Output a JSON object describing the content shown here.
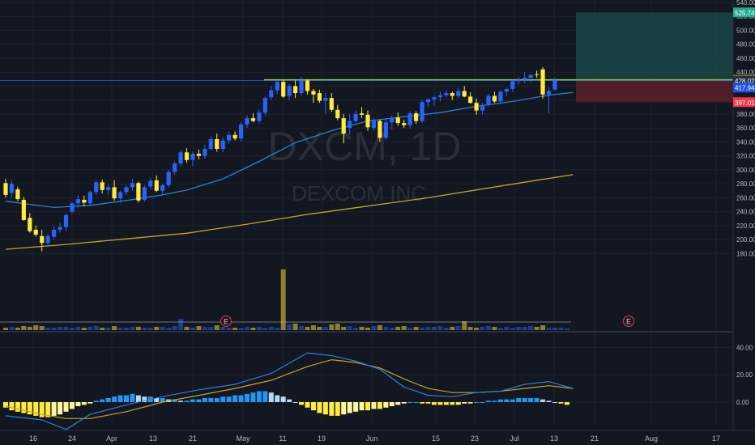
{
  "chart_data": [
    {
      "type": "candlestick",
      "watermark": {
        "symbol": "DXCM, 1D",
        "name": "DEXCOM INC"
      },
      "x_tick_labels": [
        "16",
        "24",
        "Apr",
        "13",
        "21",
        "May",
        "11",
        "19",
        "Jun",
        "15",
        "23",
        "Jul",
        "13",
        "21",
        "Aug",
        "17"
      ],
      "y_axis": {
        "range": [
          165,
          540
        ],
        "tick_labels": [
          "540.00",
          "520.00",
          "500.00",
          "480.00",
          "460.00",
          "440.00",
          "420.00",
          "400.00",
          "380.00",
          "360.00",
          "340.00",
          "320.00",
          "300.00",
          "280.00",
          "260.00",
          "240.00",
          "220.00",
          "200.00",
          "180.00"
        ]
      },
      "price_labels": [
        {
          "text": "525.74",
          "value": 525.74,
          "color": "#22ab94"
        },
        {
          "text": "429.00",
          "value": 429.0,
          "color": "#8bc34a"
        },
        {
          "text": "428.02",
          "value": 428.02,
          "color": "#2a2e39"
        },
        {
          "text": "417.94",
          "value": 417.94,
          "color": "#1e53e5"
        },
        {
          "text": "397.01",
          "value": 397.01,
          "color": "#f23645"
        }
      ],
      "resistance_level": 429.0,
      "long_position": {
        "entry": 428.02,
        "target": 525.74,
        "stop": 397.01
      },
      "earnings_markers": [
        "E",
        "E"
      ],
      "up_color": "#2962ff",
      "down_color": "#ffeb3b",
      "ohlc": [
        [
          281,
          287,
          260,
          264
        ],
        [
          267,
          284,
          260,
          280
        ],
        [
          272,
          276,
          255,
          258
        ],
        [
          257,
          261,
          227,
          228
        ],
        [
          231,
          238,
          210,
          212
        ],
        [
          214,
          220,
          204,
          207
        ],
        [
          205,
          214,
          183,
          195
        ],
        [
          195,
          208,
          190,
          205
        ],
        [
          204,
          219,
          200,
          214
        ],
        [
          214,
          224,
          210,
          218
        ],
        [
          218,
          238,
          213,
          235
        ],
        [
          240,
          254,
          237,
          252
        ],
        [
          252,
          264,
          246,
          258
        ],
        [
          257,
          263,
          248,
          253
        ],
        [
          252,
          270,
          250,
          268
        ],
        [
          268,
          285,
          264,
          282
        ],
        [
          282,
          286,
          266,
          271
        ],
        [
          271,
          279,
          264,
          275
        ],
        [
          275,
          285,
          256,
          259
        ],
        [
          259,
          270,
          253,
          268
        ],
        [
          268,
          278,
          264,
          275
        ],
        [
          275,
          287,
          270,
          281
        ],
        [
          281,
          283,
          253,
          256
        ],
        [
          257,
          278,
          254,
          275
        ],
        [
          276,
          288,
          272,
          284
        ],
        [
          285,
          292,
          268,
          270
        ],
        [
          270,
          280,
          265,
          278
        ],
        [
          278,
          300,
          275,
          297
        ],
        [
          297,
          312,
          293,
          309
        ],
        [
          309,
          328,
          305,
          325
        ],
        [
          325,
          331,
          310,
          314
        ],
        [
          314,
          326,
          306,
          323
        ],
        [
          323,
          329,
          315,
          320
        ],
        [
          320,
          336,
          316,
          330
        ],
        [
          330,
          348,
          328,
          344
        ],
        [
          344,
          352,
          326,
          330
        ],
        [
          330,
          346,
          325,
          342
        ],
        [
          342,
          355,
          338,
          350
        ],
        [
          350,
          355,
          342,
          345
        ],
        [
          345,
          368,
          340,
          365
        ],
        [
          365,
          378,
          360,
          374
        ],
        [
          374,
          381,
          368,
          370
        ],
        [
          370,
          387,
          366,
          382
        ],
        [
          382,
          405,
          378,
          403
        ],
        [
          404,
          420,
          400,
          414
        ],
        [
          414,
          428,
          408,
          426
        ],
        [
          426,
          429,
          403,
          405
        ],
        [
          406,
          423,
          400,
          420
        ],
        [
          420,
          428,
          403,
          410
        ],
        [
          410,
          433,
          406,
          428
        ],
        [
          428,
          430,
          408,
          413
        ],
        [
          413,
          416,
          396,
          408
        ],
        [
          410,
          415,
          396,
          399
        ],
        [
          399,
          410,
          380,
          403
        ],
        [
          403,
          410,
          383,
          386
        ],
        [
          386,
          393,
          371,
          374
        ],
        [
          374,
          380,
          338,
          352
        ],
        [
          360,
          380,
          350,
          370
        ],
        [
          370,
          385,
          367,
          380
        ],
        [
          381,
          390,
          374,
          379
        ],
        [
          379,
          385,
          356,
          361
        ],
        [
          360,
          374,
          356,
          370
        ],
        [
          370,
          372,
          340,
          346
        ],
        [
          346,
          374,
          343,
          368
        ],
        [
          368,
          378,
          358,
          375
        ],
        [
          375,
          382,
          363,
          367
        ],
        [
          367,
          372,
          360,
          364
        ],
        [
          364,
          384,
          359,
          381
        ],
        [
          381,
          384,
          366,
          370
        ],
        [
          370,
          400,
          367,
          397
        ],
        [
          397,
          403,
          390,
          401
        ],
        [
          401,
          407,
          392,
          404
        ],
        [
          404,
          412,
          398,
          407
        ],
        [
          407,
          414,
          404,
          410
        ],
        [
          410,
          412,
          400,
          406
        ],
        [
          406,
          418,
          402,
          413
        ],
        [
          413,
          420,
          404,
          405
        ],
        [
          405,
          411,
          395,
          396
        ],
        [
          396,
          402,
          379,
          385
        ],
        [
          385,
          396,
          379,
          393
        ],
        [
          393,
          409,
          391,
          406
        ],
        [
          406,
          412,
          396,
          398
        ],
        [
          398,
          414,
          396,
          412
        ],
        [
          412,
          418,
          406,
          416
        ],
        [
          416,
          429,
          412,
          427
        ],
        [
          427,
          433,
          422,
          429
        ],
        [
          429,
          440,
          424,
          432
        ],
        [
          432,
          437,
          425,
          436
        ],
        [
          437,
          442,
          432,
          436
        ],
        [
          444,
          447,
          402,
          408
        ],
        [
          408,
          418,
          381,
          413
        ],
        [
          415,
          432,
          414,
          428
        ]
      ],
      "ma_short": [
        [
          0,
          255
        ],
        [
          8,
          246
        ],
        [
          14,
          249
        ],
        [
          20,
          256
        ],
        [
          26,
          264
        ],
        [
          30,
          271
        ],
        [
          36,
          287
        ],
        [
          42,
          312
        ],
        [
          48,
          339
        ],
        [
          54,
          356
        ],
        [
          60,
          370
        ],
        [
          66,
          376
        ],
        [
          72,
          382
        ],
        [
          78,
          391
        ],
        [
          84,
          398
        ],
        [
          90,
          407
        ],
        [
          94,
          411
        ]
      ],
      "ma_long": [
        [
          0,
          186
        ],
        [
          10,
          193
        ],
        [
          20,
          201
        ],
        [
          30,
          209
        ],
        [
          40,
          222
        ],
        [
          50,
          236
        ],
        [
          60,
          248
        ],
        [
          70,
          260
        ],
        [
          80,
          274
        ],
        [
          88,
          285
        ],
        [
          94,
          293
        ]
      ],
      "volume": [
        3,
        4,
        3,
        5,
        4,
        6,
        5,
        3,
        3,
        4,
        4,
        3,
        4,
        3,
        4,
        5,
        3,
        3,
        5,
        3,
        3,
        4,
        4,
        3,
        3,
        4,
        4,
        3,
        5,
        14,
        4,
        3,
        5,
        4,
        4,
        6,
        4,
        3,
        3,
        3,
        4,
        3,
        4,
        3,
        4,
        3,
        75,
        7,
        8,
        5,
        4,
        6,
        4,
        4,
        7,
        8,
        4,
        5,
        3,
        4,
        3,
        5,
        6,
        4,
        3,
        4,
        5,
        3,
        4,
        3,
        4,
        4,
        5,
        3,
        4,
        5,
        11,
        4,
        3,
        4,
        5,
        4,
        3,
        4,
        3,
        4,
        4,
        5,
        4,
        6,
        3,
        3,
        3,
        2
      ],
      "volume_max": 100
    },
    {
      "type": "macd",
      "y_axis": {
        "range": [
          -40,
          60
        ],
        "tick_labels": [
          "40.00",
          "20.00",
          "0.00"
        ]
      },
      "macd_line": [
        [
          0,
          -10
        ],
        [
          6,
          -13
        ],
        [
          10,
          -20
        ],
        [
          14,
          -9
        ],
        [
          20,
          -2
        ],
        [
          26,
          4
        ],
        [
          32,
          9
        ],
        [
          38,
          13
        ],
        [
          44,
          21
        ],
        [
          50,
          36
        ],
        [
          54,
          34
        ],
        [
          58,
          30
        ],
        [
          62,
          24
        ],
        [
          66,
          11
        ],
        [
          70,
          5
        ],
        [
          74,
          4
        ],
        [
          78,
          7
        ],
        [
          82,
          8
        ],
        [
          86,
          13
        ],
        [
          90,
          15
        ],
        [
          94,
          10
        ]
      ],
      "signal_line": [
        [
          0,
          -3
        ],
        [
          6,
          -9
        ],
        [
          10,
          -12
        ],
        [
          14,
          -12
        ],
        [
          20,
          -7
        ],
        [
          26,
          0
        ],
        [
          32,
          5
        ],
        [
          38,
          10
        ],
        [
          44,
          16
        ],
        [
          50,
          26
        ],
        [
          54,
          31
        ],
        [
          58,
          29
        ],
        [
          62,
          25
        ],
        [
          66,
          17
        ],
        [
          70,
          10
        ],
        [
          74,
          7
        ],
        [
          78,
          7
        ],
        [
          82,
          8
        ],
        [
          86,
          10
        ],
        [
          90,
          12
        ],
        [
          94,
          10
        ]
      ],
      "histogram": [
        -4,
        -6,
        -7,
        -8,
        -9,
        -10,
        -11,
        -11,
        -10,
        -9,
        -7,
        -5,
        -3,
        -2,
        -1,
        1,
        2,
        3,
        4,
        5,
        5,
        6,
        5,
        4,
        4,
        3,
        3,
        2,
        2,
        1,
        1,
        2,
        2,
        3,
        3,
        3,
        4,
        4,
        5,
        5,
        6,
        7,
        8,
        8,
        7,
        5,
        4,
        2,
        0,
        -2,
        -4,
        -6,
        -8,
        -9,
        -10,
        -10,
        -9,
        -8,
        -7,
        -6,
        -6,
        -5,
        -5,
        -4,
        -3,
        -2,
        -1,
        0,
        0,
        -1,
        -1,
        -2,
        -2,
        -2,
        -2,
        -2,
        -1,
        -1,
        0,
        0,
        1,
        1,
        2,
        2,
        2,
        3,
        3,
        3,
        3,
        2,
        1,
        0,
        -1,
        -2
      ]
    }
  ]
}
